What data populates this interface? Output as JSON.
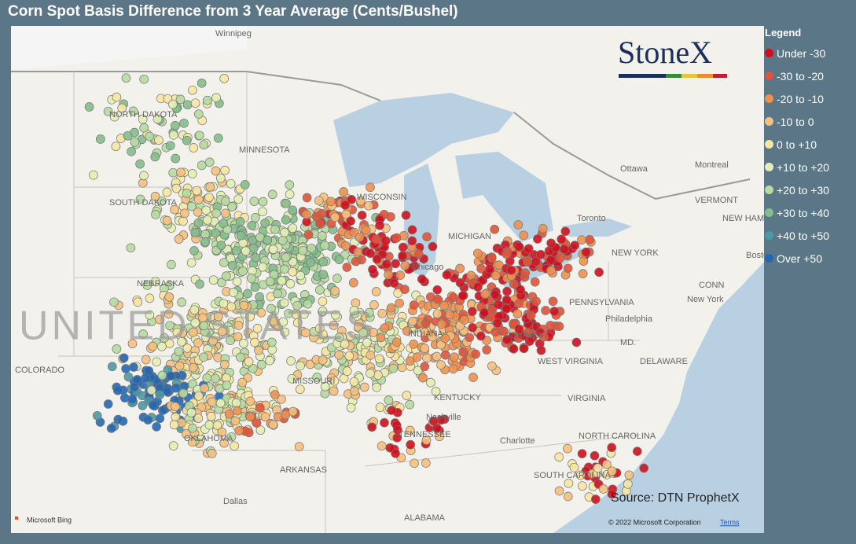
{
  "header": {
    "title": "Corn Spot Basis Difference from 3 Year Average (Cents/Bushel)"
  },
  "legend": {
    "title": "Legend",
    "items": [
      {
        "label": "Under -30",
        "color": "#d0101e"
      },
      {
        "label": "-30 to -20",
        "color": "#e0533a"
      },
      {
        "label": "-20 to -10",
        "color": "#ee9050"
      },
      {
        "label": "-10 to 0",
        "color": "#f6c07c"
      },
      {
        "label": "0 to +10",
        "color": "#f7e6a2"
      },
      {
        "label": "+10 to +20",
        "color": "#e3efb4"
      },
      {
        "label": "+20 to +30",
        "color": "#b6daa0"
      },
      {
        "label": "+30 to +40",
        "color": "#84be8c"
      },
      {
        "label": "+40 to +50",
        "color": "#4c98a6"
      },
      {
        "label": "Over +50",
        "color": "#2468b4"
      }
    ]
  },
  "map": {
    "labels": [
      "Winnipeg",
      "NORTH DAKOTA",
      "MINNESOTA",
      "SOUTH DAKOTA",
      "NEBRASKA",
      "UNITED STATES",
      "COLORADO",
      "MISSOURI",
      "OKLAHOMA",
      "ARKANSAS",
      "Dallas",
      "ALABAMA",
      "TENNESSEE",
      "Nashville",
      "KENTUCKY",
      "WEST VIRGINIA",
      "VIRGINIA",
      "NORTH CAROLINA",
      "SOUTH CAROLINA",
      "Charlotte",
      "PENNSYLVANIA",
      "Philadelphia",
      "New York",
      "NEW YORK",
      "MD.",
      "DELAWARE",
      "CONN",
      "Ottawa",
      "Montreal",
      "VERMONT",
      "NEW HAMPSHIRE",
      "Toronto",
      "Boston",
      "Chicago",
      "Columbus",
      "INDIANA",
      "MICHIGAN",
      "WISCONSIN"
    ],
    "logo": "StoneX",
    "source": "Source: DTN ProphetX",
    "provider": "Microsoft Bing",
    "copyright": "© 2022 Microsoft Corporation",
    "terms": "Terms"
  }
}
